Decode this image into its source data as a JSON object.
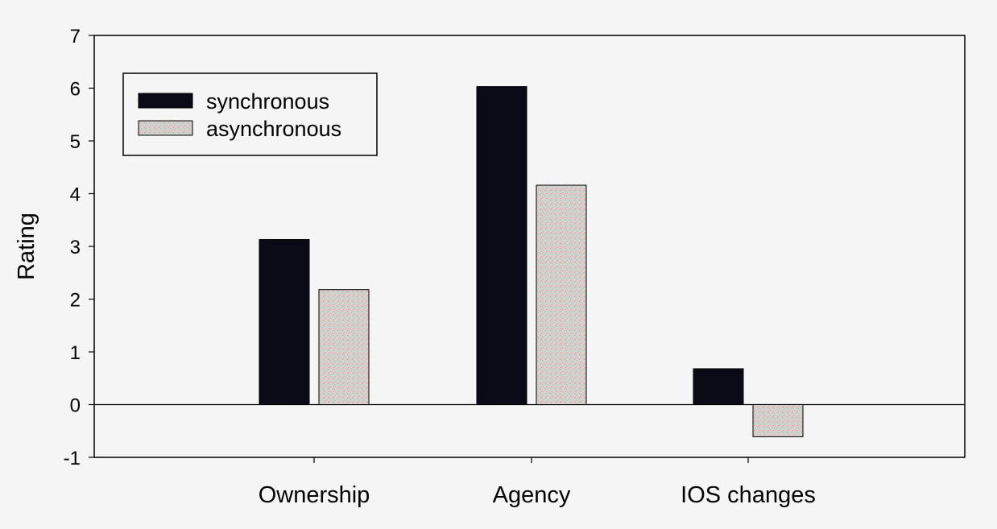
{
  "chart_data": {
    "type": "bar",
    "categories": [
      "Ownership",
      "Agency",
      "IOS changes"
    ],
    "series": [
      {
        "name": "synchronous",
        "values": [
          3.13,
          6.03,
          0.68
        ],
        "color": "#0b0b17"
      },
      {
        "name": "asynchronous",
        "values": [
          2.18,
          4.16,
          -0.61
        ],
        "color": "#c9c4c2"
      }
    ],
    "xlabel": "",
    "ylabel": "Rating",
    "ylim": [
      -1,
      7
    ],
    "yticks": [
      "-1",
      "0",
      "1",
      "2",
      "3",
      "4",
      "5",
      "6",
      "7"
    ],
    "grid": false,
    "legend_position": "top-left"
  }
}
